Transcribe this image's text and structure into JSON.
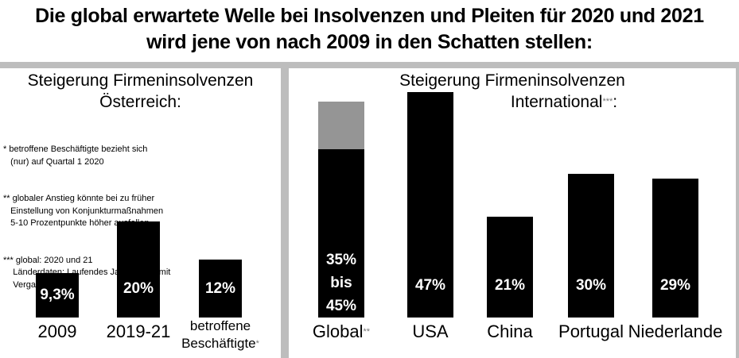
{
  "title": {
    "line1": "Die global erwartete Welle bei Insolvenzen und Pleiten für 2020 und 2021",
    "line2": "wird jene von nach 2009 in den Schatten stellen:"
  },
  "chart_data": [
    {
      "type": "bar",
      "title_line1": "Steigerung Firmeninsolvenzen",
      "title_line2": "Österreich:",
      "unit": "%",
      "categories": [
        "2009",
        "2019-21",
        "betroffene Beschäftigte"
      ],
      "category_suffix": [
        "",
        "",
        "*"
      ],
      "values": [
        9.3,
        20,
        12
      ],
      "labels": [
        "9,3%",
        "20%",
        "12%"
      ]
    },
    {
      "type": "bar",
      "title_line1": "Steigerung Firmeninsolvenzen",
      "title_line2": "International",
      "title_suffix": "***",
      "title_end": ":",
      "unit": "%",
      "categories": [
        "Global",
        "USA",
        "China",
        "Portugal",
        "Niederlande"
      ],
      "category_suffix": [
        "**",
        "",
        "",
        "",
        ""
      ],
      "values": [
        35,
        47,
        21,
        30,
        29
      ],
      "range_upper": [
        45,
        null,
        null,
        null,
        null
      ],
      "labels": [
        "35%\nbis\n45%",
        "47%",
        "21%",
        "30%",
        "29%"
      ]
    }
  ],
  "notes": [
    "* betroffene Beschäftigte bezieht sich\n   (nur) auf Quartal 1 2020",
    "** globaler Anstieg könnte bei zu früher\n   Einstellung von Konjunkturmaßnahmen\n   5-10 Prozentpunkte höher ausfallen",
    "*** global: 2020 und 21\n    Länderdaten: Laufendes Jahr im Vgl. mit\n    Vergangenem"
  ],
  "colors": {
    "bar": "#000000",
    "range": "#959595",
    "divider": "#bdbdbd"
  }
}
